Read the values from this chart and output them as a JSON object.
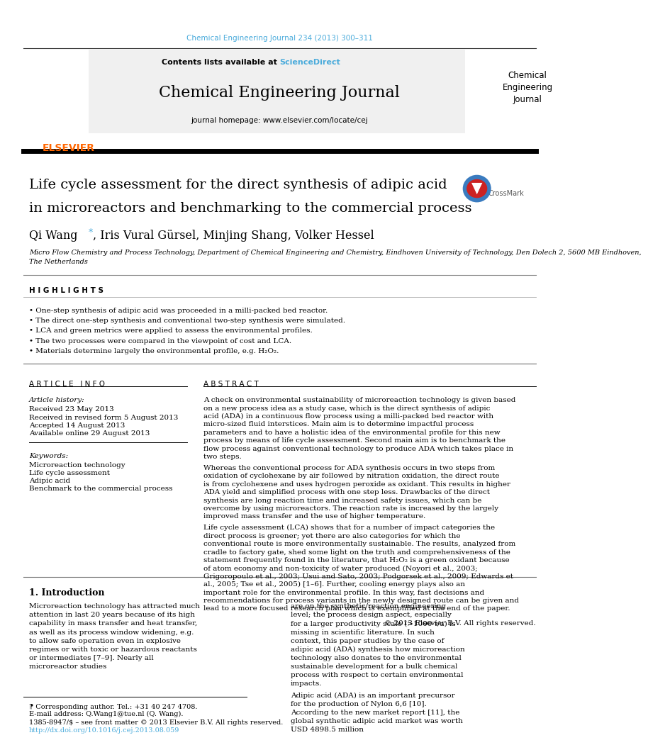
{
  "page_width": 9.92,
  "page_height": 13.23,
  "background_color": "#ffffff",
  "journal_ref_color": "#4AABDB",
  "journal_ref": "Chemical Engineering Journal 234 (2013) 300–311",
  "sciencedirect_color": "#4AABDB",
  "contents_line": "Contents lists available at ScienceDirect",
  "journal_title": "Chemical Engineering Journal",
  "journal_homepage": "journal homepage: www.elsevier.com/locate/cej",
  "elsevier_color": "#FF6600",
  "article_title_line1": "Life cycle assessment for the direct synthesis of adipic acid",
  "article_title_line2": "in microreactors and benchmarking to the commercial process",
  "affiliation": "Micro Flow Chemistry and Process Technology, Department of Chemical Engineering and Chemistry, Eindhoven University of Technology, Den Dolech 2, 5600 MB Eindhoven,\nThe Netherlands",
  "highlights_title": "H I G H L I G H T S",
  "highlights": [
    "One-step synthesis of adipic acid was proceeded in a milli-packed bed reactor.",
    "The direct one-step synthesis and conventional two-step synthesis were simulated.",
    "LCA and green metrics were applied to assess the environmental profiles.",
    "The two processes were compared in the viewpoint of cost and LCA.",
    "Materials determine largely the environmental profile, e.g. H₂O₂."
  ],
  "article_info_title": "A R T I C L E   I N F O",
  "article_history_label": "Article history:",
  "article_history": [
    "Received 23 May 2013",
    "Received in revised form 5 August 2013",
    "Accepted 14 August 2013",
    "Available online 29 August 2013"
  ],
  "keywords_label": "Keywords:",
  "keywords": [
    "Microreaction technology",
    "Life cycle assessment",
    "Adipic acid",
    "Benchmark to the commercial process"
  ],
  "abstract_title": "A B S T R A C T",
  "abstract_text": "A check on environmental sustainability of microreaction technology is given based on a new process idea as a study case, which is the direct synthesis of adipic acid (ADA) in a continuous flow process using a milli-packed bed reactor with micro-sized fluid interstices. Main aim is to determine impactful process parameters and to have a holistic idea of the environmental profile for this new process by means of life cycle assessment. Second main aim is to benchmark the flow process against conventional technology to produce ADA which takes place in two steps.\n    Whereas the conventional process for ADA synthesis occurs in two steps from oxidation of cyclohexane by air followed by nitration oxidation, the direct route is from cyclohexene and uses hydrogen peroxide as oxidant. This results in higher ADA yield and simplified process with one step less. Drawbacks of the direct synthesis are long reaction time and increased safety issues, which can be overcome by using microreactors. The reaction rate is increased by the largely improved mass transfer and the use of higher temperature.\n    Life cycle assessment (LCA) shows that for a number of impact categories the direct process is greener; yet there are also categories for which the conventional route is more environmentally sustainable. The results, analyzed from cradle to factory gate, shed some light on the truth and comprehensiveness of the statement frequently found in the literature, that H₂O₂ is a green oxidant because of atom economy and non-toxicity of water produced (Noyori et al., 2003; Grigoropoulo et al., 2003; Usui and Sato, 2003; Podgorsek et al., 2009; Edwards et al., 2005; Tse et al., 2005) [1–6]. Further, cooling energy plays also an important role for the environmental profile. In this way, fast decisions and recommendations for process variants in the newly designed route can be given and lead to a more focused research plan which is exemplified at the end of the paper.",
  "copyright": "© 2013 Elsevier B.V. All rights reserved.",
  "intro_title": "1. Introduction",
  "intro_col1": "Microreaction technology has attracted much attention in last 20 years because of its high capability in mass transfer and heat transfer, as well as its process window widening, e.g. to allow safe operation even in explosive regimes or with toxic or hazardous reactants or intermediates [7–9]. Nearly all microreactor studies",
  "intro_col2": "are on the synthetic/reaction engineering level; the process design aspect, especially for a larger productivity scale (>1000 t/a) is missing in scientific literature. In such context, this paper studies by the case of adipic acid (ADA) synthesis how microreaction technology also donates to the environmental sustainable development for a bulk chemical process with respect to certain environmental impacts.\n    Adipic acid (ADA) is an important precursor for the production of Nylon 6,6 [10]. According to the new market report [11], the global synthetic adipic acid market was worth USD 4898.5 million",
  "footer_issn": "1385-8947/$ – see front matter © 2013 Elsevier B.V. All rights reserved.",
  "footer_doi": "http://dx.doi.org/10.1016/j.cej.2013.08.059",
  "footer_doi_color": "#4AABDB",
  "corresponding_note": "⁋ Corresponding author. Tel.: +31 40 247 4708.",
  "email_note": "E-mail address: Q.Wang1@tue.nl (Q. Wang)."
}
